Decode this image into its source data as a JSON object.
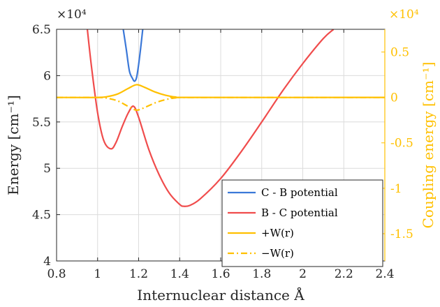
{
  "chart_data": {
    "type": "line",
    "xlabel": "Internuclear distance Å",
    "ylabel_left": "Energy [cm⁻¹]",
    "ylabel_right": "Coupling energy [cm⁻¹]",
    "left_multiplier": "×10⁴",
    "right_multiplier": "×10⁴",
    "xlim": [
      0.8,
      2.4
    ],
    "ylim_left": [
      4.0,
      6.5
    ],
    "ylim_right": [
      -1.8,
      0.75
    ],
    "x_ticks": [
      0.8,
      1.0,
      1.2,
      1.4,
      1.6,
      1.8,
      2.0,
      2.2,
      2.4
    ],
    "x_tick_labels": [
      "0.8",
      "1",
      "1.2",
      "1.4",
      "1.6",
      "1.8",
      "2",
      "2.2",
      "2.4"
    ],
    "y_left_ticks": [
      4.0,
      4.5,
      5.0,
      5.5,
      6.0,
      6.5
    ],
    "y_left_tick_labels": [
      "4",
      "4.5",
      "5",
      "5.5",
      "6",
      "6.5"
    ],
    "y_right_ticks": [
      0.5,
      0,
      -0.5,
      -1.0,
      -1.5
    ],
    "y_right_tick_labels": [
      "0.5",
      "0",
      "-0.5",
      "-1",
      "-1.5"
    ],
    "grid": true,
    "legend_placement": "bottom-right",
    "series": [
      {
        "name": "C - B potential",
        "axis": "left",
        "color": "#3b78d8",
        "dash": "solid",
        "x": [
          1.125,
          1.14,
          1.155,
          1.17,
          1.18,
          1.19,
          1.2,
          1.21,
          1.22
        ],
        "y": [
          6.5,
          6.28,
          6.05,
          5.97,
          5.94,
          5.98,
          6.12,
          6.3,
          6.5
        ]
      },
      {
        "name": "B - C potential",
        "axis": "left",
        "color": "#f04c4c",
        "dash": "solid",
        "x": [
          0.95,
          0.97,
          1.0,
          1.03,
          1.065,
          1.09,
          1.12,
          1.15,
          1.175,
          1.2,
          1.25,
          1.3,
          1.35,
          1.4,
          1.42,
          1.45,
          1.5,
          1.6,
          1.7,
          1.8,
          1.9,
          2.0,
          2.1,
          2.15
        ],
        "y": [
          6.5,
          6.1,
          5.6,
          5.3,
          5.21,
          5.28,
          5.45,
          5.6,
          5.67,
          5.55,
          5.2,
          4.93,
          4.73,
          4.61,
          4.59,
          4.6,
          4.67,
          4.89,
          5.18,
          5.5,
          5.83,
          6.13,
          6.4,
          6.5
        ]
      },
      {
        "name": "+W(r)",
        "axis": "right",
        "color": "#ffc000",
        "dash": "solid",
        "x": [
          0.8,
          1.0,
          1.05,
          1.1,
          1.15,
          1.19,
          1.23,
          1.28,
          1.33,
          1.38,
          1.45,
          2.4
        ],
        "y": [
          0,
          0,
          0.01,
          0.04,
          0.1,
          0.14,
          0.11,
          0.06,
          0.025,
          0.005,
          0,
          0
        ]
      },
      {
        "name": "−W(r)",
        "axis": "right",
        "color": "#ffc000",
        "dash": "dashdot",
        "x": [
          0.8,
          1.0,
          1.05,
          1.1,
          1.15,
          1.19,
          1.23,
          1.28,
          1.33,
          1.38,
          1.45,
          2.4
        ],
        "y": [
          0,
          0,
          -0.01,
          -0.04,
          -0.1,
          -0.14,
          -0.11,
          -0.06,
          -0.025,
          -0.005,
          0,
          0
        ]
      }
    ]
  }
}
